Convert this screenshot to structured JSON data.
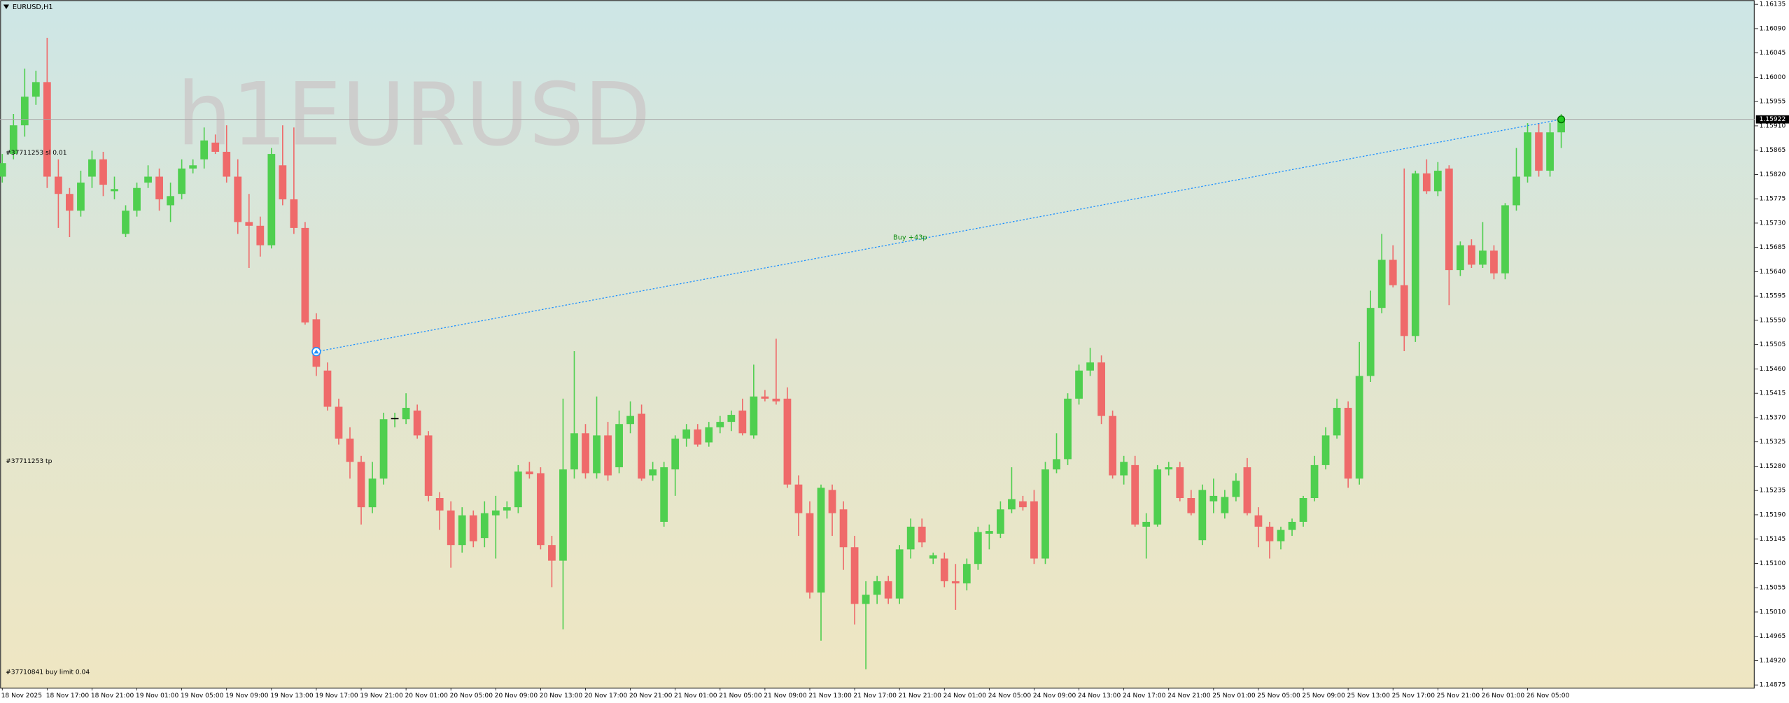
{
  "chart_data": {
    "type": "candlestick",
    "title": "EURUSD,H1",
    "watermark": "h1EURUSD",
    "up_color": "#4fcf4f",
    "down_color": "#ef6a6a",
    "grid": false,
    "bid": 1.15922,
    "trade": {
      "label": "Buy +43p",
      "open_price": 1.15492,
      "close_price": 1.15922,
      "color": "#1e90ff",
      "label_color": "#0a8a0a"
    },
    "order_labels": [
      "#37711253 sl 0.01",
      "#37711253 tp",
      "#37710841 buy limit 0.04"
    ],
    "ylim": [
      1.14869,
      1.16143
    ],
    "yticks": [
      1.16135,
      {
        "value": 1.1609,
        "label": "1.16090"
      },
      1.16045,
      {
        "value": 1.16,
        "label": "1.16000"
      },
      1.15955,
      {
        "value": 1.1591,
        "label": "1.15910"
      },
      1.15865,
      {
        "value": 1.1582,
        "label": "1.15820"
      },
      1.15775,
      {
        "value": 1.1573,
        "label": "1.15730"
      },
      1.15685,
      {
        "value": 1.1564,
        "label": "1.15640"
      },
      1.15595,
      {
        "value": 1.1555,
        "label": "1.15550"
      },
      1.15505,
      {
        "value": 1.1546,
        "label": "1.15460"
      },
      1.15415,
      {
        "value": 1.1537,
        "label": "1.15370"
      },
      1.15325,
      {
        "value": 1.1528,
        "label": "1.15280"
      },
      1.15235,
      {
        "value": 1.1519,
        "label": "1.15190"
      },
      1.15145,
      {
        "value": 1.151,
        "label": "1.15100"
      },
      1.15055,
      {
        "value": 1.1501,
        "label": "1.15010"
      },
      1.14965,
      {
        "value": 1.1492,
        "label": "1.14920"
      },
      1.14875
    ],
    "categories": [
      "18 Nov 2025",
      null,
      null,
      null,
      "18 Nov 17:00",
      null,
      null,
      null,
      "18 Nov 21:00",
      null,
      null,
      null,
      "19 Nov 01:00",
      null,
      null,
      null,
      "19 Nov 05:00",
      null,
      null,
      null,
      "19 Nov 09:00",
      null,
      null,
      null,
      "19 Nov 13:00",
      null,
      null,
      null,
      "19 Nov 17:00",
      null,
      null,
      null,
      "19 Nov 21:00",
      null,
      null,
      null,
      "20 Nov 01:00",
      null,
      null,
      null,
      "20 Nov 05:00",
      null,
      null,
      null,
      "20 Nov 09:00",
      null,
      null,
      null,
      "20 Nov 13:00",
      null,
      null,
      null,
      "20 Nov 17:00",
      null,
      null,
      null,
      "20 Nov 21:00",
      null,
      null,
      null,
      "21 Nov 01:00",
      null,
      null,
      null,
      "21 Nov 05:00",
      null,
      null,
      null,
      "21 Nov 09:00",
      null,
      null,
      null,
      "21 Nov 13:00",
      null,
      null,
      null,
      "21 Nov 17:00",
      null,
      null,
      null,
      "21 Nov 21:00",
      null,
      null,
      null,
      "24 Nov 01:00",
      null,
      null,
      null,
      "24 Nov 05:00",
      null,
      null,
      null,
      "24 Nov 09:00",
      null,
      null,
      null,
      "24 Nov 13:00",
      null,
      null,
      null,
      "24 Nov 17:00",
      null,
      null,
      null,
      "24 Nov 21:00",
      null,
      null,
      null,
      "25 Nov 01:00",
      null,
      null,
      null,
      "25 Nov 05:00",
      null,
      null,
      null,
      "25 Nov 09:00",
      null,
      null,
      null,
      "25 Nov 13:00",
      null,
      null,
      null,
      "25 Nov 17:00",
      null,
      null,
      null,
      "25 Nov 21:00",
      null,
      null,
      null,
      "26 Nov 01:00",
      null,
      null,
      null,
      "26 Nov 05:00",
      null,
      null,
      null
    ],
    "open": [
      1.15816,
      1.15858,
      1.15911,
      1.15964,
      1.15991,
      1.15816,
      1.15784,
      1.15753,
      1.15816,
      1.15848,
      1.15789,
      1.1571,
      1.15753,
      1.15805,
      1.15816,
      1.15763,
      1.15784,
      1.15831,
      1.15848,
      1.15879,
      1.15862,
      1.15816,
      1.15732,
      1.15725,
      1.15689,
      1.15837,
      1.15774,
      1.15721,
      1.15552,
      1.15457,
      1.1539,
      1.15331,
      1.15288,
      1.15204,
      1.15257,
      1.15367,
      1.15367,
      1.15383,
      1.15337,
      1.15221,
      1.15198,
      1.15134,
      1.15189,
      1.15147,
      1.15189,
      1.15198,
      1.15204,
      1.1527,
      1.15267,
      1.15134,
      1.15105,
      1.15274,
      1.15341,
      1.15267,
      1.15337,
      1.15278,
      1.15358,
      1.15377,
      1.15263,
      1.15177,
      1.15274,
      1.15331,
      1.15348,
      1.15324,
      1.15352,
      1.15362,
      1.15383,
      1.15337,
      1.15409,
      1.15405,
      1.15405,
      1.15246,
      1.15193,
      1.15046,
      1.15236,
      1.152,
      1.1513,
      1.15025,
      1.15042,
      1.15067,
      1.15035,
      1.15126,
      1.15168,
      1.15109,
      1.15109,
      1.15067,
      1.15063,
      1.15099,
      1.15155,
      1.15155,
      1.152,
      1.15215,
      1.15215,
      1.15109,
      1.15274,
      1.15293,
      1.15405,
      1.15457,
      1.15472,
      1.15373,
      1.15263,
      1.15282,
      1.15168,
      1.15172,
      1.15274,
      1.15278,
      1.15221,
      1.15143,
      1.15215,
      1.15193,
      1.15223,
      1.15278,
      1.15189,
      1.15168,
      1.15141,
      1.15162,
      1.15177,
      1.15221,
      1.15282,
      1.15337,
      1.15388,
      1.15257,
      1.15447,
      1.15573,
      1.15662,
      1.15615,
      1.15521,
      1.15822,
      1.15789,
      1.15831,
      1.15643,
      1.15689,
      1.15653,
      1.15679,
      1.15637,
      1.15763,
      1.15816,
      1.15898,
      1.15827,
      1.15898
    ],
    "high": [
      1.15858,
      1.15932,
      1.16016,
      1.16012,
      1.16073,
      1.15848,
      1.15795,
      1.15827,
      1.15864,
      1.15862,
      1.15816,
      1.15763,
      1.15805,
      1.15837,
      1.15831,
      1.15805,
      1.15848,
      1.15848,
      1.15907,
      1.15894,
      1.15911,
      1.15848,
      1.15784,
      1.15742,
      1.15869,
      1.15911,
      1.15907,
      1.15732,
      1.15563,
      1.15472,
      1.15405,
      1.15352,
      1.15299,
      1.15288,
      1.15379,
      1.15379,
      1.15415,
      1.15394,
      1.15345,
      1.15232,
      1.15215,
      1.15204,
      1.15198,
      1.15215,
      1.15225,
      1.15215,
      1.15282,
      1.15288,
      1.15278,
      1.15151,
      1.15405,
      1.15493,
      1.15358,
      1.15409,
      1.15362,
      1.15383,
      1.154,
      1.15394,
      1.15288,
      1.15288,
      1.15337,
      1.15358,
      1.15358,
      1.15362,
      1.15373,
      1.15383,
      1.15405,
      1.15468,
      1.15421,
      1.15516,
      1.15426,
      1.15263,
      1.15215,
      1.15246,
      1.15246,
      1.15215,
      1.15151,
      1.15067,
      1.15077,
      1.15077,
      1.15134,
      1.15183,
      1.15183,
      1.1512,
      1.1512,
      1.15099,
      1.15109,
      1.15168,
      1.15172,
      1.15215,
      1.15278,
      1.15225,
      1.15236,
      1.15288,
      1.15341,
      1.15415,
      1.15468,
      1.15499,
      1.15485,
      1.15383,
      1.15299,
      1.15299,
      1.15193,
      1.15282,
      1.15288,
      1.15288,
      1.15236,
      1.15246,
      1.15257,
      1.15236,
      1.15267,
      1.15295,
      1.15204,
      1.15177,
      1.15168,
      1.15183,
      1.15225,
      1.15299,
      1.15352,
      1.15405,
      1.154,
      1.1551,
      1.15605,
      1.1571,
      1.15689,
      1.15831,
      1.15827,
      1.15848,
      1.15843,
      1.15837,
      1.15696,
      1.157,
      1.15732,
      1.15689,
      1.15767,
      1.15869,
      1.15915,
      1.15915,
      1.15915,
      1.15932
    ],
    "low": [
      1.15805,
      1.15848,
      1.1589,
      1.15949,
      1.15795,
      1.15721,
      1.15704,
      1.15742,
      1.15795,
      1.1578,
      1.15774,
      1.15704,
      1.15742,
      1.15795,
      1.15753,
      1.15732,
      1.15774,
      1.15822,
      1.15831,
      1.15858,
      1.15805,
      1.1571,
      1.15647,
      1.15668,
      1.15683,
      1.15763,
      1.1571,
      1.15542,
      1.15447,
      1.15383,
      1.1532,
      1.15257,
      1.15172,
      1.15193,
      1.15246,
      1.15352,
      1.15358,
      1.15331,
      1.15215,
      1.15162,
      1.15092,
      1.1512,
      1.1513,
      1.1513,
      1.15109,
      1.15183,
      1.15193,
      1.15257,
      1.15126,
      1.15056,
      1.14978,
      1.15257,
      1.15257,
      1.15257,
      1.15253,
      1.15267,
      1.15341,
      1.15253,
      1.15253,
      1.15168,
      1.15225,
      1.15316,
      1.15316,
      1.15316,
      1.15341,
      1.15345,
      1.15337,
      1.15331,
      1.154,
      1.15394,
      1.1524,
      1.15151,
      1.15035,
      1.14957,
      1.15151,
      1.15088,
      1.14987,
      1.14904,
      1.15025,
      1.15025,
      1.15025,
      1.15109,
      1.1513,
      1.15099,
      1.15056,
      1.15014,
      1.1505,
      1.15088,
      1.15126,
      1.15147,
      1.15193,
      1.15198,
      1.15099,
      1.15099,
      1.15267,
      1.15282,
      1.15394,
      1.15447,
      1.15358,
      1.15257,
      1.15246,
      1.15168,
      1.15109,
      1.15168,
      1.15263,
      1.15215,
      1.15189,
      1.15134,
      1.15193,
      1.15183,
      1.15215,
      1.15189,
      1.1513,
      1.15109,
      1.15126,
      1.15151,
      1.15168,
      1.15215,
      1.15274,
      1.15331,
      1.1524,
      1.15246,
      1.15436,
      1.15563,
      1.15611,
      1.15493,
      1.1551,
      1.15784,
      1.1578,
      1.15578,
      1.15632,
      1.15647,
      1.15647,
      1.15626,
      1.15626,
      1.15753,
      1.15805,
      1.15816,
      1.15816,
      1.15869
    ],
    "close": [
      1.15841,
      1.15911,
      1.15964,
      1.15991,
      1.15816,
      1.15784,
      1.15753,
      1.15805,
      1.15848,
      1.15801,
      1.15793,
      1.15753,
      1.15795,
      1.15816,
      1.15774,
      1.1578,
      1.15831,
      1.15837,
      1.15883,
      1.15862,
      1.15816,
      1.15732,
      1.15725,
      1.15689,
      1.15858,
      1.15774,
      1.15721,
      1.15546,
      1.15464,
      1.1539,
      1.15331,
      1.15288,
      1.15204,
      1.15257,
      1.15367,
      1.15369,
      1.15388,
      1.15337,
      1.15225,
      1.15198,
      1.15134,
      1.15189,
      1.15141,
      1.15193,
      1.15198,
      1.15204,
      1.1527,
      1.15265,
      1.15134,
      1.15105,
      1.15274,
      1.15341,
      1.15267,
      1.15337,
      1.15263,
      1.15358,
      1.15373,
      1.15257,
      1.15274,
      1.15278,
      1.15331,
      1.15348,
      1.1532,
      1.15352,
      1.15362,
      1.15375,
      1.15341,
      1.15409,
      1.15405,
      1.154,
      1.15246,
      1.15193,
      1.15046,
      1.1524,
      1.15193,
      1.1513,
      1.15025,
      1.15042,
      1.15067,
      1.15035,
      1.15126,
      1.15168,
      1.15139,
      1.15115,
      1.15067,
      1.15063,
      1.15099,
      1.15158,
      1.1516,
      1.152,
      1.15219,
      1.15204,
      1.15109,
      1.15274,
      1.15293,
      1.15405,
      1.15457,
      1.15472,
      1.15373,
      1.15263,
      1.15288,
      1.15172,
      1.15177,
      1.15274,
      1.15278,
      1.15221,
      1.15193,
      1.15236,
      1.15225,
      1.15223,
      1.15253,
      1.15193,
      1.15168,
      1.15141,
      1.15162,
      1.15177,
      1.15221,
      1.15282,
      1.15337,
      1.15388,
      1.15257,
      1.15447,
      1.15573,
      1.15662,
      1.15615,
      1.15521,
      1.15822,
      1.15789,
      1.15827,
      1.15643,
      1.15689,
      1.15653,
      1.15679,
      1.15637,
      1.15763,
      1.15816,
      1.15898,
      1.15827,
      1.15898,
      1.15922
    ]
  }
}
